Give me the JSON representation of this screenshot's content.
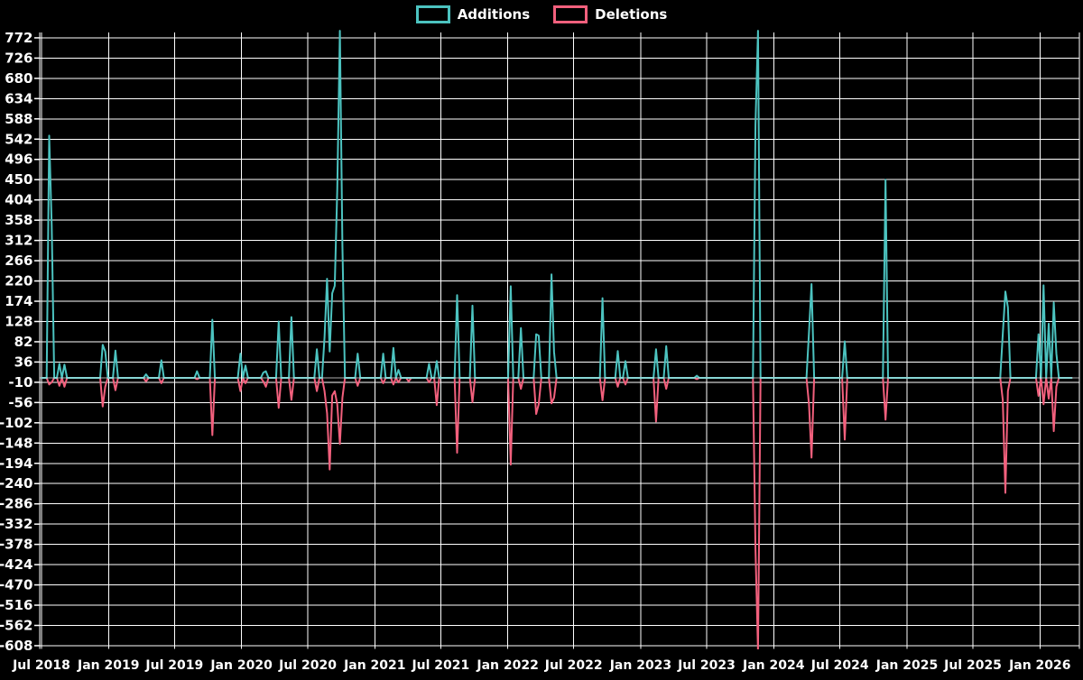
{
  "app": {
    "background": "#000000",
    "text_color": "#ffffff",
    "grid_color": "#ffffff",
    "zero_line_color": "rgba(255,255,255,0.45)"
  },
  "legend": {
    "items": [
      {
        "label": "Additions",
        "color": "#4cc3c0"
      },
      {
        "label": "Deletions",
        "color": "#f2607d"
      }
    ]
  },
  "chart_data": {
    "type": "line",
    "title": "",
    "xlabel": "",
    "ylabel": "",
    "grid": true,
    "legend_position": "top-center",
    "x_axis": {
      "start": "2018-07-01",
      "end": "2026-03-29",
      "tick_labels": [
        "Jul 2018",
        "Jan 2019",
        "Jul 2019",
        "Jan 2020",
        "Jul 2020",
        "Jan 2021",
        "Jul 2021",
        "Jan 2022",
        "Jul 2022",
        "Jan 2023",
        "Jul 2023",
        "Jan 2024",
        "Jul 2024",
        "Jan 2025",
        "Jul 2025",
        "Jan 2026"
      ]
    },
    "y_axis": {
      "tick_values": [
        772,
        726,
        680,
        634,
        588,
        542,
        496,
        450,
        404,
        358,
        312,
        266,
        220,
        174,
        128,
        82,
        36,
        -10,
        -56,
        -102,
        -148,
        -194,
        -240,
        -286,
        -332,
        -378,
        -424,
        -470,
        -516,
        -562,
        -608
      ],
      "value_min": -622,
      "value_max": 790
    },
    "series": [
      {
        "name": "Additions",
        "color": "#4cc3c0"
      },
      {
        "name": "Deletions",
        "color": "#f2607d"
      }
    ],
    "baseline_value": 0,
    "fill_value": 0,
    "weekly_events": [
      {
        "week": "2018-07-22",
        "additions": 550,
        "deletions": -15
      },
      {
        "week": "2018-07-29",
        "additions": 345,
        "deletions": -10
      },
      {
        "week": "2018-08-19",
        "additions": 32,
        "deletions": -18
      },
      {
        "week": "2018-09-02",
        "additions": 30,
        "deletions": -20
      },
      {
        "week": "2018-12-16",
        "additions": 75,
        "deletions": -65
      },
      {
        "week": "2018-12-23",
        "additions": 60,
        "deletions": -20
      },
      {
        "week": "2019-01-20",
        "additions": 62,
        "deletions": -28
      },
      {
        "week": "2019-04-14",
        "additions": 8,
        "deletions": -8
      },
      {
        "week": "2019-05-26",
        "additions": 40,
        "deletions": -12
      },
      {
        "week": "2019-09-01",
        "additions": 15,
        "deletions": -3
      },
      {
        "week": "2019-10-13",
        "additions": 132,
        "deletions": -130
      },
      {
        "week": "2019-12-29",
        "additions": 55,
        "deletions": -30
      },
      {
        "week": "2020-01-12",
        "additions": 28,
        "deletions": -12
      },
      {
        "week": "2020-03-01",
        "additions": 12,
        "deletions": -8
      },
      {
        "week": "2020-03-08",
        "additions": 15,
        "deletions": -20
      },
      {
        "week": "2020-04-12",
        "additions": 128,
        "deletions": -68
      },
      {
        "week": "2020-05-17",
        "additions": 138,
        "deletions": -50
      },
      {
        "week": "2020-07-26",
        "additions": 65,
        "deletions": -30
      },
      {
        "week": "2020-08-16",
        "additions": 92,
        "deletions": -30
      },
      {
        "week": "2020-08-23",
        "additions": 225,
        "deletions": -80
      },
      {
        "week": "2020-08-30",
        "additions": 60,
        "deletions": -208
      },
      {
        "week": "2020-09-06",
        "additions": 192,
        "deletions": -40
      },
      {
        "week": "2020-09-13",
        "additions": 209,
        "deletions": -30
      },
      {
        "week": "2020-09-20",
        "additions": 427,
        "deletions": -60
      },
      {
        "week": "2020-09-27",
        "additions": 788,
        "deletions": -150
      },
      {
        "week": "2020-10-04",
        "additions": 300,
        "deletions": -45
      },
      {
        "week": "2020-11-15",
        "additions": 55,
        "deletions": -18
      },
      {
        "week": "2021-01-24",
        "additions": 55,
        "deletions": -12
      },
      {
        "week": "2021-02-21",
        "additions": 68,
        "deletions": -15
      },
      {
        "week": "2021-03-08",
        "additions": 18,
        "deletions": -10
      },
      {
        "week": "2021-04-05",
        "additions": 0,
        "deletions": -8
      },
      {
        "week": "2021-05-30",
        "additions": 32,
        "deletions": -10
      },
      {
        "week": "2021-06-20",
        "additions": 38,
        "deletions": -62
      },
      {
        "week": "2021-08-15",
        "additions": 188,
        "deletions": -170
      },
      {
        "week": "2021-09-26",
        "additions": 164,
        "deletions": -55
      },
      {
        "week": "2022-01-09",
        "additions": 208,
        "deletions": -197
      },
      {
        "week": "2022-02-06",
        "additions": 113,
        "deletions": -25
      },
      {
        "week": "2022-03-20",
        "additions": 99,
        "deletions": -82
      },
      {
        "week": "2022-03-27",
        "additions": 96,
        "deletions": -60
      },
      {
        "week": "2022-05-01",
        "additions": 235,
        "deletions": -58
      },
      {
        "week": "2022-05-08",
        "additions": 59,
        "deletions": -45
      },
      {
        "week": "2022-09-18",
        "additions": 181,
        "deletions": -51
      },
      {
        "week": "2022-10-30",
        "additions": 61,
        "deletions": -20
      },
      {
        "week": "2022-11-20",
        "additions": 38,
        "deletions": -15
      },
      {
        "week": "2023-02-12",
        "additions": 65,
        "deletions": -99
      },
      {
        "week": "2023-03-12",
        "additions": 72,
        "deletions": -25
      },
      {
        "week": "2023-06-04",
        "additions": 5,
        "deletions": -3
      },
      {
        "week": "2023-11-12",
        "additions": 575,
        "deletions": -389
      },
      {
        "week": "2023-11-19",
        "additions": 788,
        "deletions": -620
      },
      {
        "week": "2024-04-07",
        "additions": 104,
        "deletions": -60
      },
      {
        "week": "2024-04-14",
        "additions": 213,
        "deletions": -181
      },
      {
        "week": "2024-07-14",
        "additions": 83,
        "deletions": -140
      },
      {
        "week": "2024-11-03",
        "additions": 450,
        "deletions": -95
      },
      {
        "week": "2025-09-21",
        "additions": 99,
        "deletions": -50
      },
      {
        "week": "2025-09-28",
        "additions": 196,
        "deletions": -261
      },
      {
        "week": "2025-10-05",
        "additions": 160,
        "deletions": -30
      },
      {
        "week": "2025-12-28",
        "additions": 99,
        "deletions": -41
      },
      {
        "week": "2026-01-11",
        "additions": 210,
        "deletions": -60
      },
      {
        "week": "2026-01-25",
        "additions": 123,
        "deletions": -47
      },
      {
        "week": "2026-02-08",
        "additions": 171,
        "deletions": -121
      },
      {
        "week": "2026-02-15",
        "additions": 55,
        "deletions": -20
      }
    ]
  }
}
